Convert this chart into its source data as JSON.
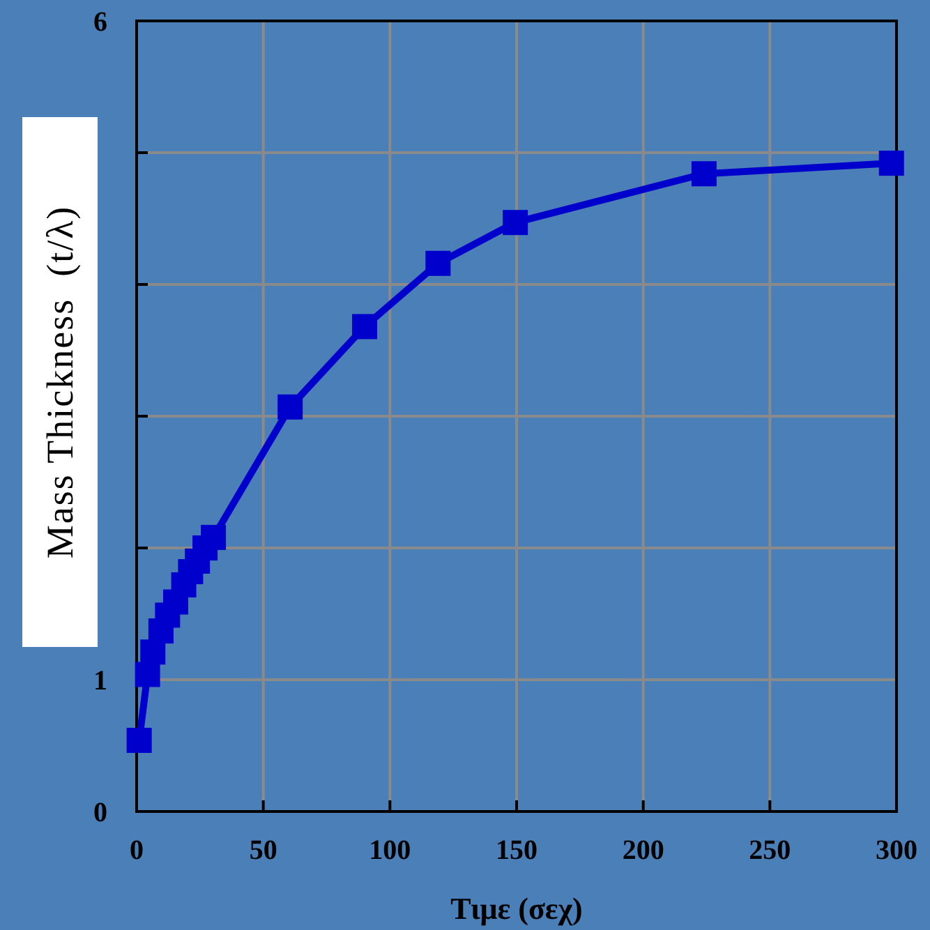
{
  "chart_data": {
    "type": "line",
    "xlabel": "Τιμε (σεχ)",
    "ylabel": "Mass Thickness  (t/λ)",
    "x": [
      1,
      4.3,
      6.4,
      9.6,
      12.2,
      15.4,
      18.6,
      21.3,
      24,
      27,
      30.3,
      60.6,
      90,
      119,
      149.5,
      224,
      298
    ],
    "series": [
      {
        "color": "#0000cc",
        "values": [
          0.54,
          1.04,
          1.21,
          1.37,
          1.49,
          1.59,
          1.72,
          1.82,
          1.9,
          2.0,
          2.08,
          3.07,
          3.68,
          4.16,
          4.47,
          4.84,
          4.92
        ]
      }
    ],
    "xlim": [
      0,
      300
    ],
    "xticks": [
      0,
      50,
      100,
      150,
      200,
      250,
      300
    ],
    "ylim": [
      0,
      6
    ],
    "yticks": [
      0,
      1,
      {
        "value": 2,
        "label": null
      },
      {
        "value": 3,
        "label": null
      },
      {
        "value": 4,
        "label": null
      },
      {
        "value": 5,
        "label": null
      },
      6
    ],
    "grid": true,
    "marker": "square",
    "line_style": "solid"
  }
}
